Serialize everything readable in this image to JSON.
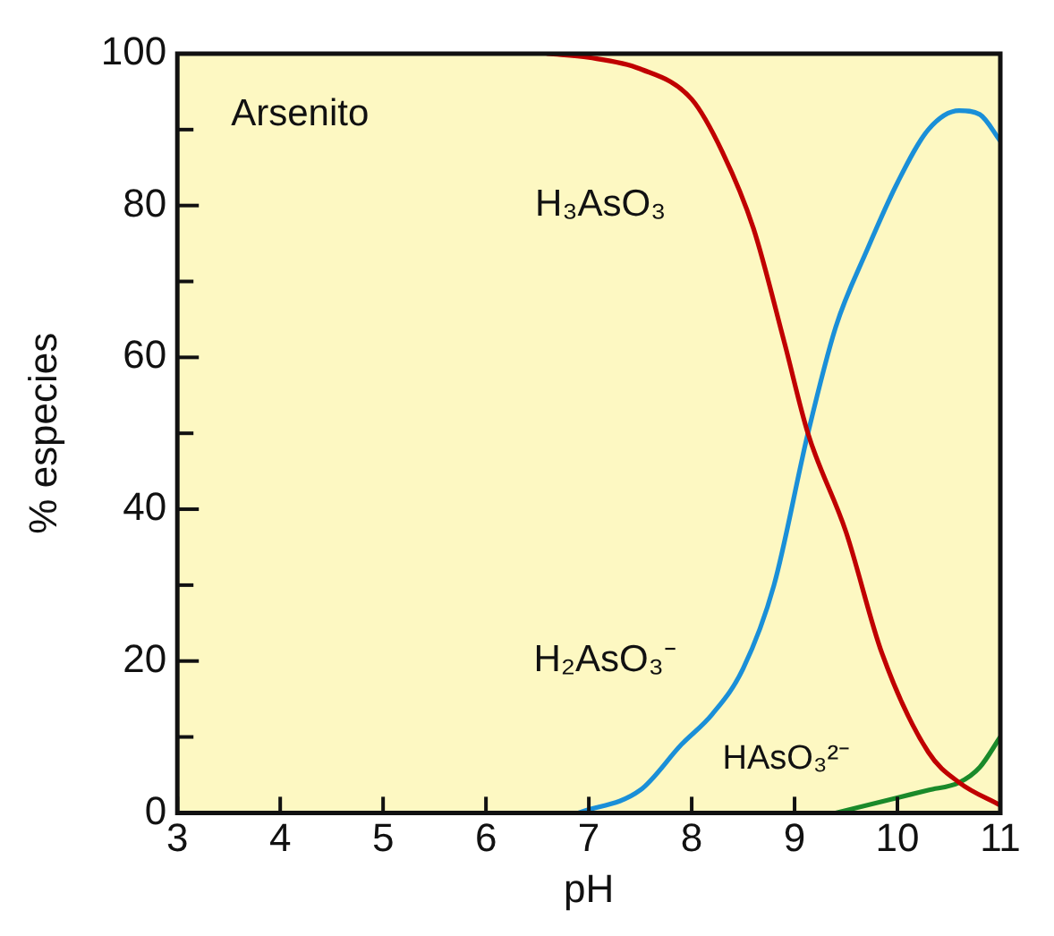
{
  "chart_data": {
    "type": "line",
    "xlabel": "pH",
    "ylabel": "% especies",
    "annotations": [
      "Arsenito"
    ],
    "xlim": [
      3,
      11
    ],
    "xticks": [
      3,
      4,
      5,
      6,
      7,
      8,
      9,
      10,
      11
    ],
    "ylim": [
      0,
      100
    ],
    "yticks": [
      0,
      {
        "value": 10,
        "label": null
      },
      20,
      {
        "value": 30,
        "label": null
      },
      40,
      {
        "value": 50,
        "label": null
      },
      60,
      {
        "value": 70,
        "label": null
      },
      80,
      {
        "value": 90,
        "label": null
      },
      100
    ],
    "marker": "none",
    "line_style": "solid",
    "legend": false,
    "series": [
      {
        "name": "H₃AsO₃",
        "color": "#c00000",
        "x": [
          6.6,
          7,
          7.5,
          8,
          8.3,
          8.6,
          8.9,
          9.13,
          9.5,
          9.85,
          10.3,
          10.6,
          11
        ],
        "values": [
          100,
          99.5,
          98,
          94,
          87,
          77,
          62,
          50,
          37,
          21,
          8,
          4,
          1
        ]
      },
      {
        "name": "H₂AsO₃⁻",
        "color": "#1a8fd8",
        "x": [
          6.9,
          7.5,
          7.9,
          8.2,
          8.5,
          8.8,
          9.13,
          9.4,
          9.7,
          10,
          10.3,
          10.6,
          10.8,
          11
        ],
        "values": [
          0,
          3,
          9,
          13,
          19,
          30,
          50,
          64,
          74,
          83,
          90,
          92.5,
          92,
          88.5
        ]
      },
      {
        "name": "HAsO₃²⁻",
        "color": "#1a8a2a",
        "x": [
          9.4,
          10,
          10.3,
          10.6,
          10.8,
          11
        ],
        "values": [
          0,
          2,
          3,
          4,
          6,
          10
        ]
      }
    ]
  }
}
